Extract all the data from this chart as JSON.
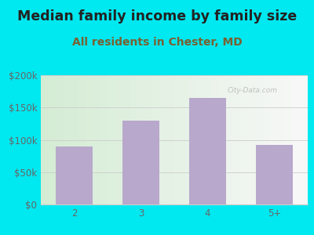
{
  "title": "Median family income by family size",
  "subtitle": "All residents in Chester, MD",
  "categories": [
    "2",
    "3",
    "4",
    "5+"
  ],
  "values": [
    90000,
    130000,
    165000,
    92000
  ],
  "bar_color": "#b8a8cc",
  "title_color": "#222222",
  "subtitle_color": "#7a6030",
  "outer_bg_color": "#00e8f0",
  "tick_label_color": "#666666",
  "ytick_labels": [
    "$0",
    "$50k",
    "$100k",
    "$150k",
    "$200k"
  ],
  "ytick_values": [
    0,
    50000,
    100000,
    150000,
    200000
  ],
  "ylim": [
    0,
    200000
  ],
  "title_fontsize": 12.5,
  "subtitle_fontsize": 10,
  "tick_fontsize": 8.5,
  "grid_color": "#cccccc",
  "plot_bg_left": "#d4ecd4",
  "plot_bg_right": "#f5f5f5"
}
